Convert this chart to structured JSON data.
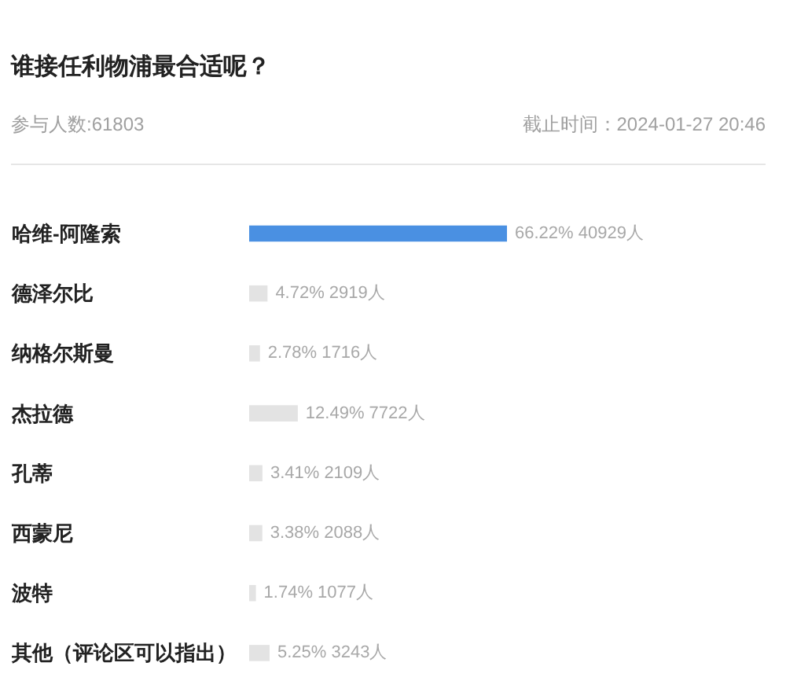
{
  "chart_data": {
    "type": "bar",
    "orientation": "horizontal",
    "title": "谁接任利物浦最合适呢？",
    "subtitle": "参与人数:61803",
    "annotations": [
      "截止时间：2024-01-27 20:46"
    ],
    "categories": [
      "哈维-阿隆索",
      "德泽尔比",
      "纳格尔斯曼",
      "杰拉德",
      "孔蒂",
      "西蒙尼",
      "波特",
      "其他（评论区可以指出）"
    ],
    "values": [
      66.22,
      4.72,
      2.78,
      12.49,
      3.41,
      3.38,
      1.74,
      5.25
    ],
    "colors": [
      "#4a90e2",
      "#e3e3e3",
      "#e3e3e3",
      "#e3e3e3",
      "#e3e3e3",
      "#e3e3e3",
      "#e3e3e3",
      "#e3e3e3"
    ],
    "value_labels": [
      "66.22% 40929人",
      "4.72% 2919人",
      "2.78% 1716人",
      "12.49% 7722人",
      "3.41% 2109人",
      "3.38% 2088人",
      "1.74% 1077人",
      "5.25% 3243人"
    ],
    "tick_labels": "y"
  }
}
